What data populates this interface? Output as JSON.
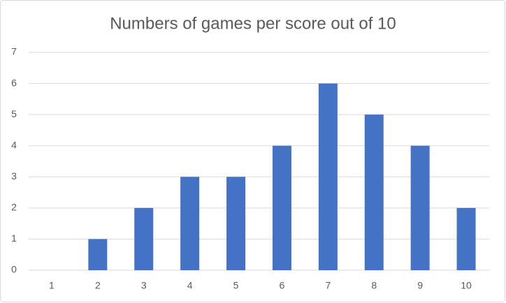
{
  "chart_data": {
    "type": "bar",
    "title": "Numbers of games per score out of 10",
    "categories": [
      "1",
      "2",
      "3",
      "4",
      "5",
      "6",
      "7",
      "8",
      "9",
      "10"
    ],
    "values": [
      0,
      1,
      2,
      3,
      3,
      4,
      6,
      5,
      4,
      2
    ],
    "color": "#4472c4",
    "ylim": [
      0,
      7
    ],
    "yticks": [
      0,
      1,
      2,
      3,
      4,
      5,
      6,
      7
    ],
    "grid": true
  }
}
